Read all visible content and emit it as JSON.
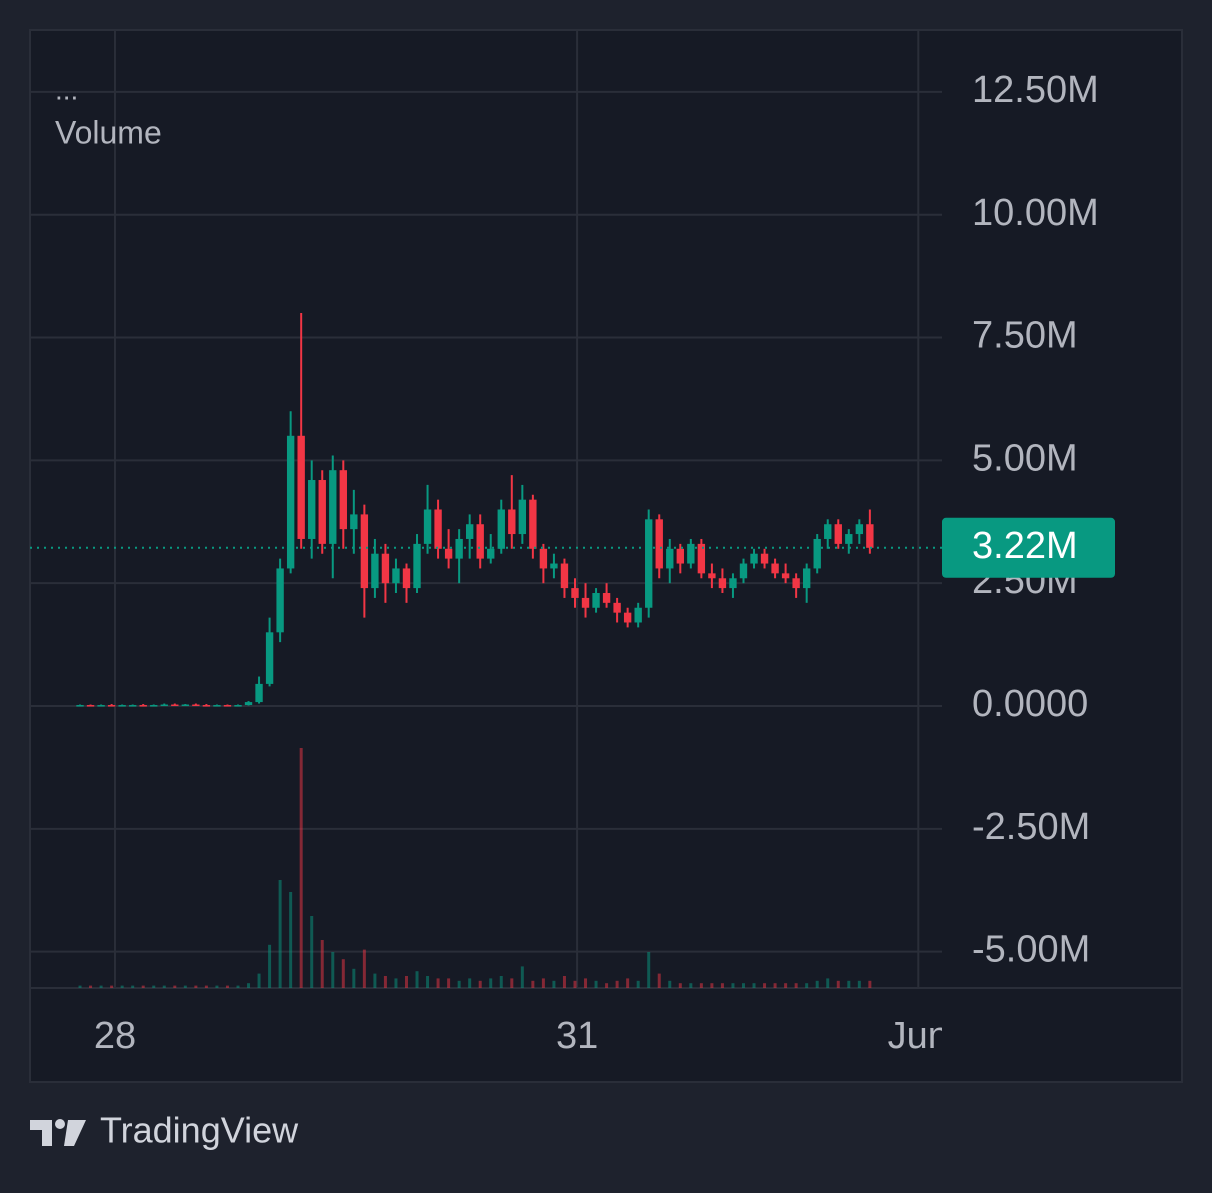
{
  "chart_data": {
    "type": "candlestick",
    "indicator_menu": "...",
    "volume_label": "Volume",
    "brand": "TradingView",
    "open": [
      0.01,
      0.02,
      0.01,
      0.02,
      0.01,
      0.02,
      0.02,
      0.01,
      0.02,
      0.03,
      0.02,
      0.03,
      0.02,
      0.01,
      0.02,
      0.01,
      0.02,
      0.08,
      0.45,
      1.5,
      2.8,
      5.5,
      3.4,
      4.6,
      3.3,
      4.8,
      3.6,
      3.9,
      2.4,
      3.1,
      2.5,
      2.8,
      2.4,
      3.3,
      4.0,
      3.2,
      3.0,
      3.4,
      3.7,
      3.0,
      3.2,
      4.0,
      3.5,
      4.2,
      3.2,
      2.8,
      2.9,
      2.4,
      2.2,
      2.0,
      2.3,
      2.1,
      1.9,
      1.7,
      2.0,
      3.8,
      2.8,
      3.2,
      2.9,
      3.3,
      2.7,
      2.6,
      2.4,
      2.6,
      2.9,
      3.1,
      2.9,
      2.7,
      2.6,
      2.4,
      2.8,
      3.4,
      3.7,
      3.3,
      3.5,
      3.7
    ],
    "high": [
      0.03,
      0.03,
      0.03,
      0.04,
      0.03,
      0.03,
      0.04,
      0.03,
      0.05,
      0.05,
      0.04,
      0.05,
      0.04,
      0.03,
      0.03,
      0.03,
      0.1,
      0.6,
      1.8,
      3.0,
      6.0,
      8.0,
      5.0,
      4.8,
      5.1,
      5.0,
      4.4,
      4.1,
      3.4,
      3.3,
      3.0,
      2.9,
      3.5,
      4.5,
      4.2,
      3.6,
      3.6,
      3.9,
      3.9,
      3.5,
      4.2,
      4.7,
      4.5,
      4.3,
      3.3,
      3.1,
      3.0,
      2.6,
      2.5,
      2.4,
      2.5,
      2.2,
      2.0,
      2.1,
      4.0,
      3.9,
      3.4,
      3.3,
      3.4,
      3.4,
      2.9,
      2.8,
      2.7,
      3.0,
      3.2,
      3.2,
      3.0,
      2.9,
      2.7,
      2.9,
      3.5,
      3.8,
      3.8,
      3.6,
      3.8,
      4.0
    ],
    "low": [
      0,
      0,
      0,
      0,
      0,
      0,
      0.01,
      0,
      0.01,
      0.01,
      0,
      0.01,
      0,
      0,
      0,
      0,
      0.01,
      0.05,
      0.4,
      1.3,
      2.7,
      3.2,
      3.0,
      3.1,
      2.6,
      3.2,
      3.1,
      1.8,
      2.2,
      2.1,
      2.3,
      2.1,
      2.3,
      3.1,
      3.0,
      2.8,
      2.5,
      3.0,
      2.8,
      2.9,
      3.1,
      3.2,
      3.3,
      3.0,
      2.5,
      2.6,
      2.2,
      2.0,
      1.8,
      1.9,
      2.0,
      1.7,
      1.6,
      1.6,
      1.8,
      2.6,
      2.5,
      2.7,
      2.8,
      2.6,
      2.4,
      2.3,
      2.2,
      2.5,
      2.8,
      2.8,
      2.6,
      2.5,
      2.2,
      2.1,
      2.7,
      3.2,
      3.2,
      3.1,
      3.3,
      3.1
    ],
    "close": [
      0.02,
      0.01,
      0.02,
      0.01,
      0.02,
      0.02,
      0.01,
      0.02,
      0.03,
      0.02,
      0.03,
      0.02,
      0.01,
      0.02,
      0.01,
      0.02,
      0.08,
      0.45,
      1.5,
      2.8,
      5.5,
      3.4,
      4.6,
      3.3,
      4.8,
      3.6,
      3.9,
      2.4,
      3.1,
      2.5,
      2.8,
      2.4,
      3.3,
      4.0,
      3.2,
      3.0,
      3.4,
      3.7,
      3.0,
      3.2,
      4.0,
      3.5,
      4.2,
      3.2,
      2.8,
      2.9,
      2.4,
      2.2,
      2.0,
      2.3,
      2.1,
      1.9,
      1.7,
      2.0,
      3.8,
      2.8,
      3.2,
      2.9,
      3.3,
      2.7,
      2.6,
      2.4,
      2.6,
      2.9,
      3.1,
      2.9,
      2.7,
      2.6,
      2.4,
      2.8,
      3.4,
      3.7,
      3.3,
      3.5,
      3.7,
      3.22
    ],
    "volume": [
      1,
      1,
      1,
      1,
      1,
      1,
      1,
      1,
      1,
      1,
      1,
      1,
      1,
      1,
      1,
      1,
      2,
      6,
      18,
      45,
      40,
      100,
      30,
      20,
      15,
      12,
      8,
      16,
      6,
      5,
      4,
      5,
      7,
      5,
      4,
      4,
      3,
      4,
      3,
      4,
      5,
      4,
      9,
      3,
      4,
      3,
      5,
      3,
      4,
      3,
      2,
      3,
      4,
      3,
      15,
      6,
      3,
      2,
      2,
      2,
      2,
      2,
      2,
      2,
      2,
      2,
      2,
      2,
      2,
      2,
      3,
      4,
      3,
      3,
      3,
      3
    ],
    "volume_lim": [
      0,
      100
    ],
    "up_color": "#089981",
    "down_color": "#f23645",
    "ylim": [
      -5.74,
      13.76
    ],
    "yticks": [
      {
        "value": 12.5,
        "label": "12.50M"
      },
      {
        "value": 10,
        "label": "10.00M"
      },
      {
        "value": 7.5,
        "label": "7.50M"
      },
      {
        "value": 5,
        "label": "5.00M"
      },
      {
        "value": 2.5,
        "label": "2.50M"
      },
      {
        "value": 0,
        "label": "0.0000"
      },
      {
        "value": -2.5,
        "label": "-2.50M"
      },
      {
        "value": -5,
        "label": "-5.00M"
      }
    ],
    "xlim": [
      -4.75,
      81.85
    ],
    "xticks": [
      {
        "value": 3.32,
        "label": "28"
      },
      {
        "value": 47.2,
        "label": "31"
      },
      {
        "value": 79.6,
        "label": "Jun"
      }
    ],
    "last_value": {
      "value": 3.22,
      "label": "3.22M"
    },
    "grid": true
  }
}
